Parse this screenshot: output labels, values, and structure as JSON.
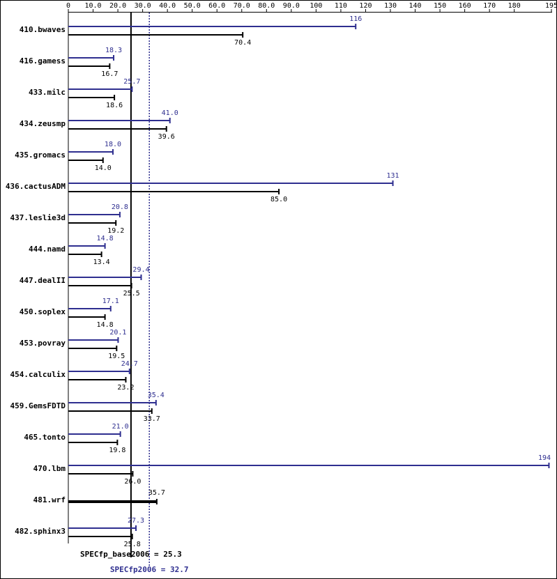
{
  "chart_data": {
    "type": "bar",
    "orientation": "horizontal",
    "categories": [
      "410.bwaves",
      "416.gamess",
      "433.milc",
      "434.zeusmp",
      "435.gromacs",
      "436.cactusADM",
      "437.leslie3d",
      "444.namd",
      "447.dealII",
      "450.soplex",
      "453.povray",
      "454.calculix",
      "459.GemsFDTD",
      "465.tonto",
      "470.lbm",
      "481.wrf",
      "482.sphinx3"
    ],
    "series": [
      {
        "color": "#2e2e8f",
        "values": [
          116,
          18.3,
          25.7,
          41.0,
          18.0,
          131,
          20.8,
          14.8,
          29.4,
          17.1,
          20.1,
          24.7,
          35.4,
          21.0,
          194,
          null,
          27.3
        ],
        "value_labels": [
          "116",
          "18.3",
          "25.7",
          "41.0",
          "18.0",
          "131",
          "20.8",
          "14.8",
          "29.4",
          "17.1",
          "20.1",
          "24.7",
          "35.4",
          "21.0",
          "194",
          null,
          "27.3"
        ]
      },
      {
        "color": "#000000",
        "values": [
          70.4,
          16.7,
          18.6,
          39.6,
          14.0,
          85.0,
          19.2,
          13.4,
          25.5,
          14.8,
          19.5,
          23.2,
          33.7,
          19.8,
          26.0,
          35.7,
          25.8
        ],
        "value_labels": [
          "70.4",
          "16.7",
          "18.6",
          "39.6",
          "14.0",
          "85.0",
          "19.2",
          "13.4",
          "25.5",
          "14.8",
          "19.5",
          "23.2",
          "33.7",
          "19.8",
          "26.0",
          "35.7",
          "25.8"
        ]
      }
    ],
    "xlim": [
      0,
      195
    ],
    "xticks": [
      0,
      {
        "value": 10,
        "label": "10.0"
      },
      {
        "value": 20,
        "label": "20.0"
      },
      {
        "value": 30,
        "label": "30.0"
      },
      {
        "value": 40,
        "label": "40.0"
      },
      {
        "value": 50,
        "label": "50.0"
      },
      {
        "value": 60,
        "label": "60.0"
      },
      {
        "value": 70,
        "label": "70.0"
      },
      {
        "value": 80,
        "label": "80.0"
      },
      {
        "value": 90,
        "label": "90.0"
      },
      100,
      110,
      120,
      130,
      140,
      150,
      160,
      170,
      180,
      195
    ],
    "reference_lines": [
      {
        "value": 25.3,
        "label": "SPECfp_base2006 = 25.3",
        "color": "#000000",
        "style": "solid"
      },
      {
        "value": 32.7,
        "label": "SPECfp2006 = 32.7",
        "color": "#2e2e8f",
        "style": "dotted"
      }
    ]
  }
}
